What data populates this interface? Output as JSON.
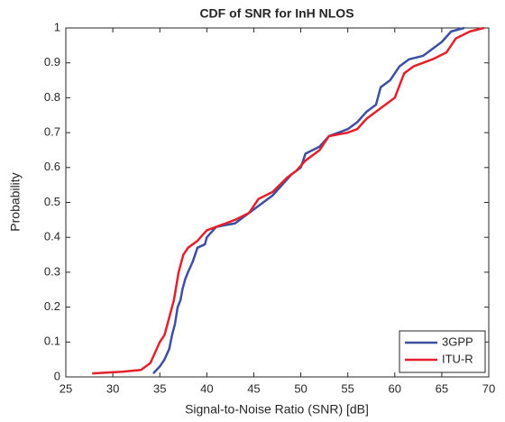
{
  "chart_data": {
    "type": "line",
    "title": "CDF of SNR for InH NLOS",
    "xlabel": "Signal-to-Noise Ratio (SNR) [dB]",
    "ylabel": "Probability",
    "xlim": [
      25,
      70
    ],
    "xticks": [
      25,
      30,
      35,
      40,
      45,
      50,
      55,
      60,
      65,
      70
    ],
    "ylim": [
      0,
      1
    ],
    "yticks": [
      0,
      0.1,
      0.2,
      0.3,
      0.4,
      0.5,
      0.6,
      0.7,
      0.8,
      0.9,
      1
    ],
    "grid": false,
    "legend": "lower right",
    "series": [
      {
        "name": "3GPP",
        "color": "#3c4fa3",
        "x": [
          34.3,
          35,
          35.5,
          36,
          36.3,
          36.6,
          36.9,
          37.2,
          37.4,
          37.7,
          38,
          38.5,
          39,
          39.8,
          40,
          41,
          43,
          44,
          45,
          46,
          47,
          48,
          49,
          50,
          50.5,
          52,
          53,
          55,
          56,
          57,
          58,
          58.5,
          59.5,
          60.5,
          61.5,
          63,
          64,
          65,
          66,
          67.4
        ],
        "values": [
          0.01,
          0.03,
          0.05,
          0.08,
          0.12,
          0.15,
          0.2,
          0.22,
          0.25,
          0.28,
          0.3,
          0.33,
          0.37,
          0.38,
          0.4,
          0.43,
          0.44,
          0.46,
          0.48,
          0.5,
          0.52,
          0.55,
          0.58,
          0.6,
          0.64,
          0.66,
          0.69,
          0.71,
          0.73,
          0.76,
          0.78,
          0.83,
          0.85,
          0.89,
          0.91,
          0.92,
          0.94,
          0.96,
          0.99,
          1.0
        ]
      },
      {
        "name": "ITU-R",
        "color": "#e3202b",
        "x": [
          27.8,
          31,
          33,
          34,
          34.5,
          35,
          35.5,
          36,
          36.5,
          37,
          37.5,
          38,
          39,
          40,
          41,
          43,
          44.5,
          45.5,
          47,
          48.5,
          49.5,
          50.5,
          52,
          53,
          55,
          56,
          57,
          58.5,
          60,
          61,
          62,
          64,
          65.5,
          66.5,
          68,
          69.5
        ],
        "values": [
          0.01,
          0.015,
          0.02,
          0.04,
          0.07,
          0.1,
          0.12,
          0.17,
          0.22,
          0.3,
          0.35,
          0.37,
          0.39,
          0.42,
          0.43,
          0.45,
          0.47,
          0.51,
          0.53,
          0.57,
          0.59,
          0.62,
          0.65,
          0.69,
          0.7,
          0.71,
          0.74,
          0.77,
          0.8,
          0.87,
          0.89,
          0.91,
          0.93,
          0.97,
          0.99,
          1.0
        ]
      }
    ]
  }
}
